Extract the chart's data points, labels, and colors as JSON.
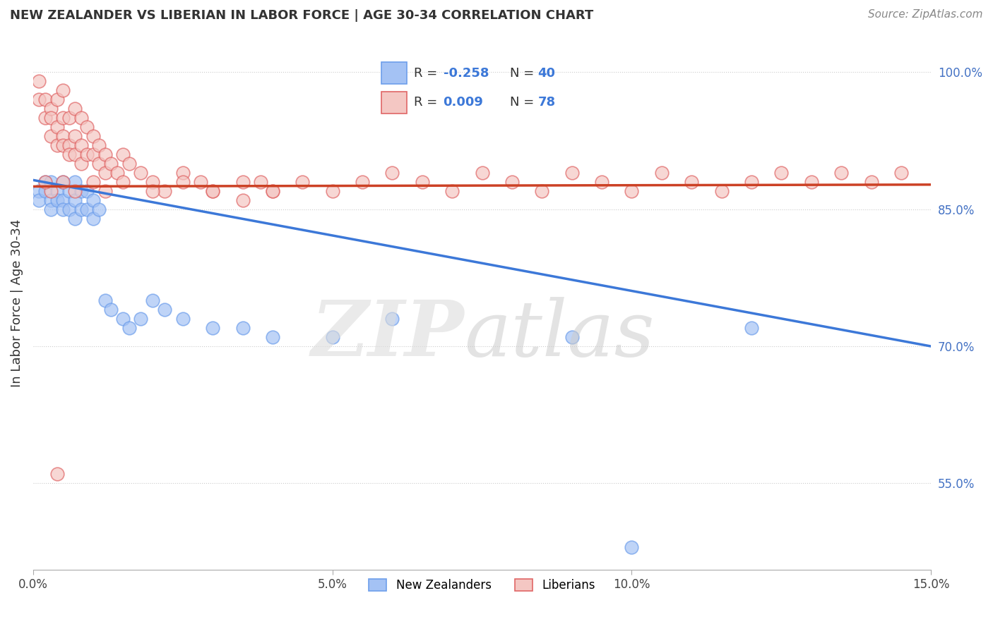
{
  "title": "NEW ZEALANDER VS LIBERIAN IN LABOR FORCE | AGE 30-34 CORRELATION CHART",
  "source": "Source: ZipAtlas.com",
  "ylabel": "In Labor Force | Age 30-34",
  "xlim": [
    0.0,
    0.15
  ],
  "ylim": [
    0.455,
    1.04
  ],
  "xtick_vals": [
    0.0,
    0.05,
    0.1,
    0.15
  ],
  "xtick_labels": [
    "0.0%",
    "5.0%",
    "10.0%",
    "15.0%"
  ],
  "ytick_vals": [
    0.55,
    0.7,
    0.85,
    1.0
  ],
  "ytick_labels": [
    "55.0%",
    "70.0%",
    "85.0%",
    "100.0%"
  ],
  "blue_color": "#a4c2f4",
  "pink_color": "#f4c7c3",
  "blue_edge_color": "#6d9eeb",
  "pink_edge_color": "#e06666",
  "blue_line_color": "#3c78d8",
  "pink_line_color": "#cc4125",
  "legend_R_blue": "-0.258",
  "legend_N_blue": "40",
  "legend_R_pink": "0.009",
  "legend_N_pink": "78",
  "legend_label_blue": "New Zealanders",
  "legend_label_pink": "Liberians",
  "blue_x": [
    0.001,
    0.001,
    0.002,
    0.002,
    0.003,
    0.003,
    0.003,
    0.004,
    0.004,
    0.005,
    0.005,
    0.005,
    0.006,
    0.006,
    0.007,
    0.007,
    0.007,
    0.008,
    0.008,
    0.009,
    0.009,
    0.01,
    0.01,
    0.011,
    0.012,
    0.013,
    0.015,
    0.016,
    0.018,
    0.02,
    0.022,
    0.025,
    0.03,
    0.035,
    0.04,
    0.05,
    0.06,
    0.09,
    0.1,
    0.12
  ],
  "blue_y": [
    0.87,
    0.86,
    0.88,
    0.87,
    0.88,
    0.86,
    0.85,
    0.87,
    0.86,
    0.88,
    0.86,
    0.85,
    0.87,
    0.85,
    0.88,
    0.86,
    0.84,
    0.87,
    0.85,
    0.87,
    0.85,
    0.86,
    0.84,
    0.85,
    0.75,
    0.74,
    0.73,
    0.72,
    0.73,
    0.75,
    0.74,
    0.73,
    0.72,
    0.72,
    0.71,
    0.71,
    0.73,
    0.71,
    0.48,
    0.72
  ],
  "pink_x": [
    0.001,
    0.001,
    0.002,
    0.002,
    0.003,
    0.003,
    0.003,
    0.004,
    0.004,
    0.004,
    0.005,
    0.005,
    0.005,
    0.005,
    0.006,
    0.006,
    0.006,
    0.007,
    0.007,
    0.007,
    0.008,
    0.008,
    0.008,
    0.009,
    0.009,
    0.01,
    0.01,
    0.011,
    0.011,
    0.012,
    0.012,
    0.013,
    0.014,
    0.015,
    0.016,
    0.018,
    0.02,
    0.022,
    0.025,
    0.028,
    0.03,
    0.035,
    0.038,
    0.04,
    0.045,
    0.05,
    0.055,
    0.06,
    0.065,
    0.07,
    0.075,
    0.08,
    0.085,
    0.09,
    0.095,
    0.1,
    0.105,
    0.11,
    0.115,
    0.12,
    0.125,
    0.13,
    0.135,
    0.14,
    0.145,
    0.02,
    0.025,
    0.03,
    0.035,
    0.04,
    0.005,
    0.007,
    0.01,
    0.012,
    0.015,
    0.003,
    0.004,
    0.002
  ],
  "pink_y": [
    0.99,
    0.97,
    0.97,
    0.95,
    0.96,
    0.95,
    0.93,
    0.97,
    0.94,
    0.92,
    0.98,
    0.95,
    0.93,
    0.92,
    0.95,
    0.92,
    0.91,
    0.96,
    0.93,
    0.91,
    0.95,
    0.92,
    0.9,
    0.94,
    0.91,
    0.93,
    0.91,
    0.92,
    0.9,
    0.91,
    0.89,
    0.9,
    0.89,
    0.91,
    0.9,
    0.89,
    0.88,
    0.87,
    0.89,
    0.88,
    0.87,
    0.86,
    0.88,
    0.87,
    0.88,
    0.87,
    0.88,
    0.89,
    0.88,
    0.87,
    0.89,
    0.88,
    0.87,
    0.89,
    0.88,
    0.87,
    0.89,
    0.88,
    0.87,
    0.88,
    0.89,
    0.88,
    0.89,
    0.88,
    0.89,
    0.87,
    0.88,
    0.87,
    0.88,
    0.87,
    0.88,
    0.87,
    0.88,
    0.87,
    0.88,
    0.87,
    0.56,
    0.88
  ]
}
